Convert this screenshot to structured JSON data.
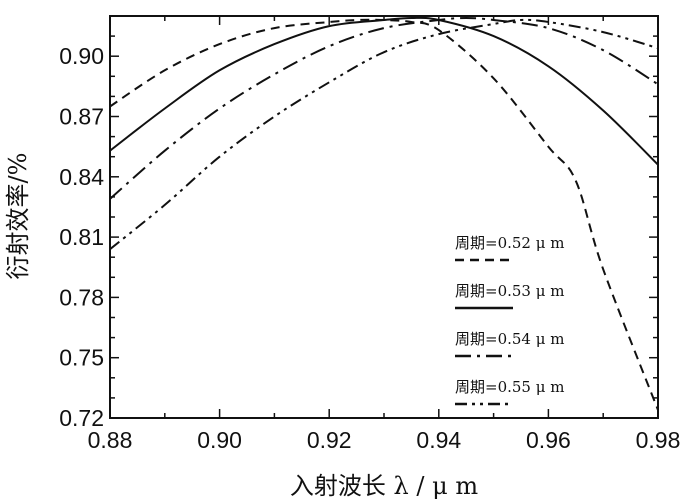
{
  "chart_data": {
    "type": "line",
    "xlabel": "入射波长 λ / μ m",
    "ylabel": "衍射效率/%",
    "xlim": [
      0.88,
      0.98
    ],
    "ylim": [
      0.72,
      0.92
    ],
    "xticks": [
      0.88,
      0.9,
      0.92,
      0.94,
      0.96,
      0.98
    ],
    "xtick_labels": [
      "0.88",
      "0.90",
      "0.92",
      "0.94",
      "0.96",
      "0.98"
    ],
    "yticks": [
      0.72,
      0.75,
      0.78,
      0.81,
      0.84,
      0.87,
      0.9
    ],
    "ytick_labels": [
      "0.72",
      "0.75",
      "0.78",
      "0.81",
      "0.84",
      "0.87",
      "0.90"
    ],
    "grid": false,
    "legend_position": "lower-right",
    "line_color": "#111111",
    "series": [
      {
        "name": "周期=0.52 μ m",
        "dash": "dashed",
        "x": [
          0.88,
          0.89,
          0.9,
          0.91,
          0.92,
          0.925,
          0.93,
          0.935,
          0.94,
          0.95,
          0.96,
          0.965,
          0.97,
          0.98
        ],
        "y": [
          0.875,
          0.893,
          0.906,
          0.914,
          0.917,
          0.918,
          0.918,
          0.917,
          0.913,
          0.889,
          0.855,
          0.838,
          0.794,
          0.724
        ]
      },
      {
        "name": "周期=0.53 μ m",
        "dash": "solid",
        "x": [
          0.88,
          0.89,
          0.9,
          0.91,
          0.92,
          0.93,
          0.935,
          0.94,
          0.95,
          0.96,
          0.97,
          0.98
        ],
        "y": [
          0.853,
          0.874,
          0.893,
          0.906,
          0.915,
          0.918,
          0.919,
          0.918,
          0.91,
          0.895,
          0.873,
          0.846
        ]
      },
      {
        "name": "周期=0.54 μ m",
        "dash": "dash-dot",
        "x": [
          0.88,
          0.89,
          0.9,
          0.91,
          0.92,
          0.93,
          0.94,
          0.945,
          0.95,
          0.96,
          0.97,
          0.98
        ],
        "y": [
          0.829,
          0.853,
          0.874,
          0.891,
          0.905,
          0.914,
          0.918,
          0.919,
          0.918,
          0.914,
          0.903,
          0.886
        ]
      },
      {
        "name": "周期=0.55 μ m",
        "dash": "dash-dot-dot",
        "x": [
          0.88,
          0.89,
          0.9,
          0.91,
          0.92,
          0.93,
          0.94,
          0.95,
          0.955,
          0.96,
          0.97,
          0.98
        ],
        "y": [
          0.804,
          0.826,
          0.85,
          0.87,
          0.887,
          0.902,
          0.911,
          0.916,
          0.918,
          0.917,
          0.912,
          0.904
        ]
      }
    ]
  }
}
